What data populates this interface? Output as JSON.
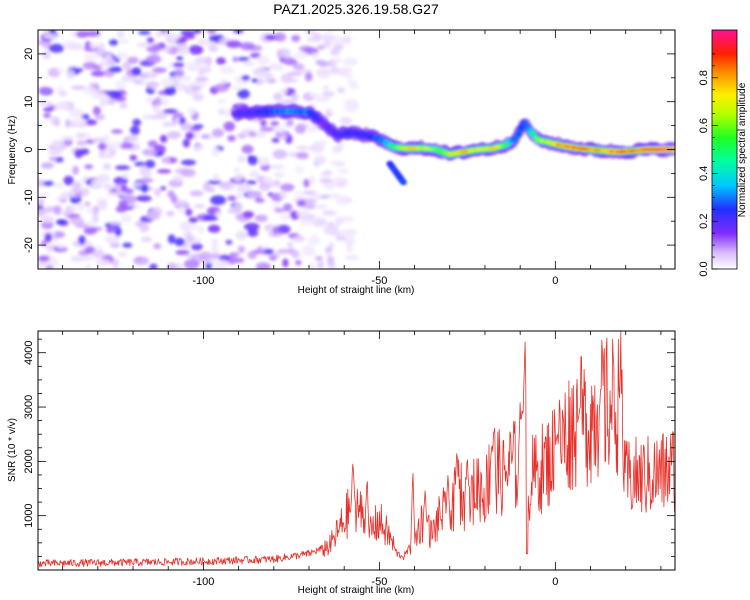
{
  "title": "PAZ1.2025.326.19.58.G27",
  "colors": {
    "snr_line": "#e8302a",
    "frame": "#000000",
    "background": "#ffffff"
  },
  "chart_data": [
    {
      "type": "heatmap",
      "name": "spectrogram",
      "title": "PAZ1.2025.326.19.58.G27",
      "xlabel": "Height of straight line (km)",
      "ylabel": "Frequency (Hz)",
      "xlim": [
        -147,
        34
      ],
      "ylim": [
        -25,
        25
      ],
      "x_ticks": [
        -100,
        -50,
        0
      ],
      "y_ticks": [
        -20,
        -10,
        0,
        10,
        20
      ],
      "noise_region_x": [
        -147,
        -65
      ],
      "ridge": {
        "x": [
          -91,
          -85,
          -80,
          -75,
          -70,
          -66,
          -62,
          -58,
          -54,
          -50,
          -46,
          -42,
          -38,
          -34,
          -30,
          -26,
          -22,
          -18,
          -14,
          -11,
          -9,
          -7,
          -5,
          -2,
          2,
          6,
          10,
          14,
          18,
          22,
          26,
          30,
          34
        ],
        "y": [
          7.5,
          7.8,
          8.0,
          8.0,
          7.8,
          5.5,
          3.0,
          3.5,
          3.0,
          2.2,
          0.5,
          0.2,
          0.3,
          0.0,
          -1.0,
          -0.5,
          0.0,
          0.2,
          1.0,
          2.5,
          5.5,
          3.8,
          2.0,
          1.5,
          0.8,
          0.3,
          0.0,
          -0.3,
          -0.5,
          -0.3,
          0.0,
          0.0,
          0.0
        ],
        "amplitude": [
          0.25,
          0.3,
          0.38,
          0.42,
          0.4,
          0.22,
          0.28,
          0.32,
          0.3,
          0.38,
          0.55,
          0.78,
          0.7,
          0.58,
          0.72,
          0.8,
          0.68,
          0.78,
          0.55,
          0.4,
          0.35,
          0.5,
          0.62,
          0.72,
          0.86,
          0.9,
          0.86,
          0.8,
          0.9,
          0.86,
          0.9,
          0.94,
          0.95
        ]
      },
      "colorbar": {
        "label": "Normalized spectral amplitude",
        "ticks": [
          0.0,
          0.2,
          0.4,
          0.6,
          0.8
        ],
        "tick_labels": [
          "0.0",
          "0.2",
          "0.4",
          "0.6",
          "0.8"
        ],
        "range": [
          0,
          1
        ]
      }
    },
    {
      "type": "line",
      "name": "snr",
      "xlabel": "Height of straight line (km)",
      "ylabel": "SNR (10 * v/v)",
      "xlim": [
        -147,
        34
      ],
      "ylim": [
        0,
        4400
      ],
      "x_ticks": [
        -100,
        -50,
        0
      ],
      "y_ticks": [
        1000,
        2000,
        3000,
        4000
      ],
      "series": [
        {
          "name": "SNR",
          "envelope_x": [
            -147,
            -120,
            -100,
            -80,
            -70,
            -64,
            -60,
            -57,
            -55,
            -53,
            -50,
            -47,
            -45,
            -43,
            -40,
            -38,
            -35,
            -32,
            -30,
            -28,
            -25,
            -22,
            -20,
            -18,
            -15,
            -12,
            -10,
            -9,
            -8.5,
            -8,
            -7,
            -5,
            -2,
            0,
            3,
            6,
            9,
            12,
            15,
            18,
            19,
            19.5,
            22,
            25,
            28,
            31,
            34
          ],
          "envelope_y": [
            120,
            140,
            160,
            200,
            300,
            450,
            900,
            1300,
            1000,
            700,
            900,
            600,
            300,
            250,
            550,
            900,
            650,
            1100,
            800,
            1500,
            1200,
            1600,
            1400,
            2000,
            1700,
            2000,
            1700,
            3000,
            2200,
            900,
            1700,
            1800,
            2000,
            2200,
            2500,
            2700,
            2750,
            2900,
            3000,
            3050,
            3100,
            1650,
            1700,
            1700,
            1750,
            1800,
            1900
          ],
          "spikes": [
            {
              "x": -57.5,
              "y": 2150
            },
            {
              "x": -53.5,
              "y": 1800
            },
            {
              "x": -40.5,
              "y": 1950
            },
            {
              "x": -37,
              "y": 1600
            },
            {
              "x": -30.5,
              "y": 1950
            },
            {
              "x": -28,
              "y": 2300
            },
            {
              "x": -25,
              "y": 2200
            },
            {
              "x": -18,
              "y": 2400
            },
            {
              "x": -10,
              "y": 3200
            },
            {
              "x": -8.6,
              "y": 4350
            },
            {
              "x": -8,
              "y": 300
            },
            {
              "x": -9.5,
              "y": 3100
            },
            {
              "x": 0.5,
              "y": 2600
            },
            {
              "x": 7,
              "y": 3150
            },
            {
              "x": 13,
              "y": 3400
            },
            {
              "x": 18.5,
              "y": 3400
            }
          ]
        }
      ]
    }
  ]
}
